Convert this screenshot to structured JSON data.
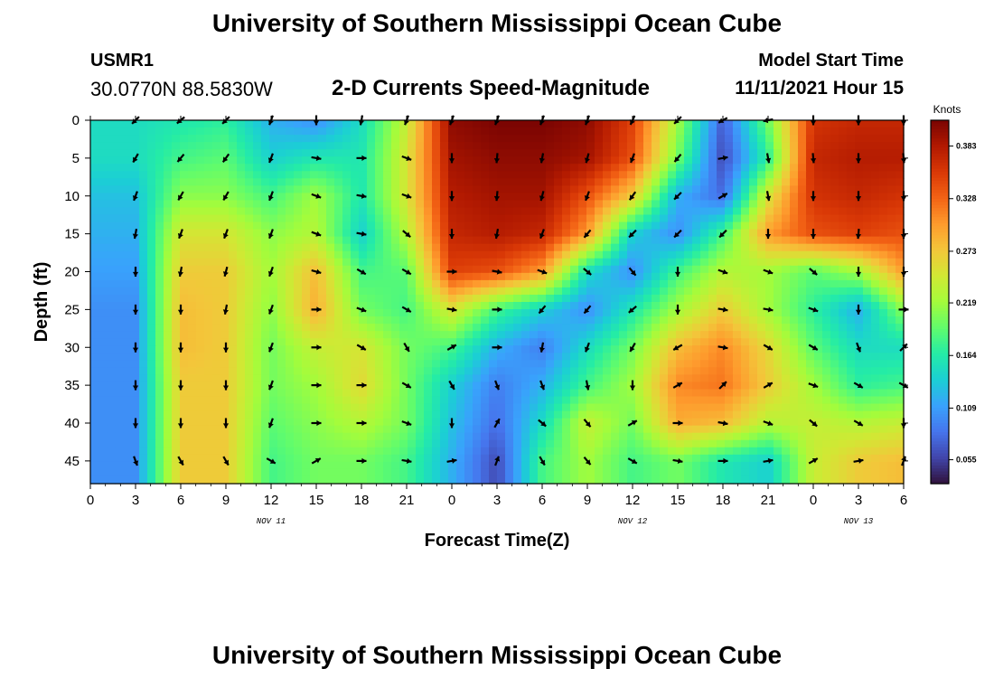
{
  "header": {
    "title": "University of Southern Mississippi Ocean Cube",
    "station": "USMR1",
    "coords": "30.0770N  88.5830W",
    "subtitle": "2-D Currents Speed-Magnitude",
    "model_start_label": "Model Start Time",
    "model_start_value": "11/11/2021 Hour 15"
  },
  "footer": {
    "title": "University of Southern Mississippi Ocean Cube"
  },
  "chart_data": {
    "type": "heatmap",
    "title": "2-D Currents Speed-Magnitude",
    "xlabel": "Forecast Time(Z)",
    "ylabel": "Depth (ft)",
    "x_ticks": [
      "0",
      "3",
      "6",
      "9",
      "12",
      "15",
      "18",
      "21",
      "0",
      "3",
      "6",
      "9",
      "12",
      "15",
      "18",
      "21",
      "0",
      "3",
      "6"
    ],
    "x_hours": [
      0,
      3,
      6,
      9,
      12,
      15,
      18,
      21,
      24,
      27,
      30,
      33,
      36,
      39,
      42,
      45,
      48,
      51,
      54
    ],
    "date_labels": [
      {
        "text": "NOV 11",
        "hour": 12
      },
      {
        "text": "NOV 12",
        "hour": 36
      },
      {
        "text": "NOV 13",
        "hour": 51
      }
    ],
    "y_ticks": [
      0,
      5,
      10,
      15,
      20,
      25,
      30,
      35,
      40,
      45
    ],
    "ylim": [
      0,
      48
    ],
    "colorbar": {
      "unit": "Knots",
      "ticks": [
        0.055,
        0.109,
        0.164,
        0.219,
        0.273,
        0.328,
        0.383
      ],
      "range": [
        0.03,
        0.41
      ],
      "colors": [
        "#30123b",
        "#4145ab",
        "#4675ed",
        "#39a2fc",
        "#1bcfd4",
        "#24eca6",
        "#61fc6c",
        "#a4fc3b",
        "#d1e834",
        "#f3c63a",
        "#fe9b2d",
        "#f36315",
        "#d93806",
        "#b11901",
        "#7a0402"
      ]
    },
    "depths": [
      0,
      5,
      10,
      15,
      20,
      25,
      30,
      35,
      40,
      45
    ],
    "vector_hours": [
      3,
      6,
      9,
      12,
      15,
      18,
      21,
      24,
      27,
      30,
      33,
      36,
      39,
      42,
      45,
      48,
      51,
      54
    ],
    "speed": [
      [
        0.15,
        0.16,
        0.17,
        0.12,
        0.1,
        0.15,
        0.24,
        0.4,
        0.41,
        0.41,
        0.4,
        0.35,
        0.22,
        0.07,
        0.2,
        0.36,
        0.37,
        0.37
      ],
      [
        0.15,
        0.18,
        0.19,
        0.14,
        0.16,
        0.16,
        0.25,
        0.39,
        0.4,
        0.4,
        0.39,
        0.34,
        0.2,
        0.06,
        0.17,
        0.37,
        0.38,
        0.38
      ],
      [
        0.13,
        0.21,
        0.21,
        0.18,
        0.22,
        0.16,
        0.25,
        0.38,
        0.39,
        0.39,
        0.34,
        0.27,
        0.12,
        0.08,
        0.25,
        0.36,
        0.37,
        0.36
      ],
      [
        0.12,
        0.25,
        0.25,
        0.21,
        0.23,
        0.14,
        0.23,
        0.37,
        0.38,
        0.37,
        0.3,
        0.14,
        0.1,
        0.18,
        0.3,
        0.34,
        0.35,
        0.34
      ],
      [
        0.11,
        0.27,
        0.27,
        0.22,
        0.28,
        0.18,
        0.19,
        0.35,
        0.34,
        0.3,
        0.15,
        0.1,
        0.18,
        0.23,
        0.22,
        0.19,
        0.22,
        0.3
      ],
      [
        0.1,
        0.28,
        0.27,
        0.21,
        0.29,
        0.2,
        0.18,
        0.25,
        0.18,
        0.14,
        0.1,
        0.16,
        0.22,
        0.27,
        0.22,
        0.17,
        0.12,
        0.21
      ],
      [
        0.1,
        0.28,
        0.27,
        0.2,
        0.24,
        0.25,
        0.2,
        0.18,
        0.12,
        0.09,
        0.15,
        0.2,
        0.28,
        0.31,
        0.26,
        0.19,
        0.15,
        0.15
      ],
      [
        0.1,
        0.27,
        0.27,
        0.2,
        0.22,
        0.26,
        0.2,
        0.14,
        0.09,
        0.12,
        0.18,
        0.22,
        0.31,
        0.32,
        0.27,
        0.22,
        0.17,
        0.18
      ],
      [
        0.1,
        0.27,
        0.27,
        0.19,
        0.21,
        0.23,
        0.2,
        0.13,
        0.08,
        0.15,
        0.24,
        0.2,
        0.29,
        0.28,
        0.23,
        0.24,
        0.23,
        0.24
      ],
      [
        0.1,
        0.27,
        0.27,
        0.18,
        0.2,
        0.2,
        0.18,
        0.12,
        0.06,
        0.18,
        0.22,
        0.18,
        0.2,
        0.16,
        0.14,
        0.24,
        0.27,
        0.28
      ]
    ],
    "direction_deg": [
      [
        225,
        230,
        225,
        200,
        180,
        190,
        200,
        200,
        200,
        200,
        200,
        205,
        225,
        240,
        260,
        180,
        180,
        180
      ],
      [
        210,
        220,
        215,
        200,
        100,
        90,
        110,
        180,
        185,
        190,
        195,
        200,
        220,
        80,
        170,
        175,
        180,
        175
      ],
      [
        200,
        210,
        210,
        200,
        110,
        100,
        110,
        180,
        185,
        195,
        200,
        215,
        225,
        60,
        170,
        180,
        180,
        180
      ],
      [
        190,
        200,
        200,
        200,
        110,
        100,
        130,
        180,
        190,
        200,
        220,
        225,
        225,
        225,
        180,
        180,
        185,
        180
      ],
      [
        180,
        190,
        195,
        200,
        105,
        120,
        120,
        90,
        100,
        110,
        130,
        140,
        180,
        110,
        110,
        130,
        180,
        180
      ],
      [
        180,
        180,
        190,
        200,
        90,
        110,
        120,
        100,
        90,
        220,
        220,
        230,
        180,
        100,
        100,
        110,
        180,
        90
      ],
      [
        180,
        180,
        180,
        200,
        90,
        120,
        150,
        60,
        90,
        190,
        200,
        210,
        240,
        100,
        120,
        120,
        160,
        45
      ],
      [
        180,
        180,
        180,
        200,
        90,
        90,
        120,
        150,
        160,
        160,
        170,
        180,
        60,
        45,
        60,
        110,
        120,
        120
      ],
      [
        180,
        180,
        180,
        200,
        90,
        90,
        110,
        180,
        30,
        130,
        140,
        60,
        90,
        100,
        110,
        130,
        120,
        180
      ],
      [
        160,
        150,
        150,
        120,
        60,
        90,
        100,
        80,
        20,
        150,
        140,
        120,
        100,
        90,
        80,
        60,
        80,
        20
      ]
    ]
  }
}
